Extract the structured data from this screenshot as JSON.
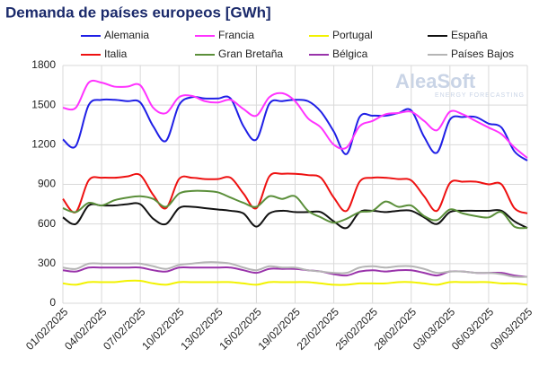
{
  "chart_data": {
    "type": "line",
    "title": "Demanda de países europeos [GWh]",
    "watermark": {
      "name": "AleaSoft",
      "tagline": "ENERGY FORECASTING"
    },
    "categories": [
      "01/02/2025",
      null,
      null,
      "04/02/2025",
      null,
      null,
      "07/02/2025",
      null,
      null,
      "10/02/2025",
      null,
      null,
      "13/02/2025",
      null,
      null,
      "16/02/2025",
      null,
      null,
      "19/02/2025",
      null,
      null,
      "22/02/2025",
      null,
      null,
      "25/02/2025",
      null,
      null,
      "28/02/2025",
      null,
      null,
      "03/03/2025",
      null,
      null,
      "06/03/2025",
      null,
      null,
      "09/03/2025"
    ],
    "ylim": [
      0,
      1800
    ],
    "yticks": [
      0,
      300,
      600,
      900,
      1200,
      1500,
      1800
    ],
    "grid": true,
    "series": [
      {
        "name": "Alemania",
        "color": "#1f1fe6",
        "values": [
          1240,
          1190,
          1500,
          1540,
          1540,
          1530,
          1520,
          1340,
          1230,
          1500,
          1560,
          1550,
          1550,
          1550,
          1340,
          1240,
          1510,
          1530,
          1540,
          1530,
          1450,
          1300,
          1130,
          1410,
          1420,
          1420,
          1440,
          1460,
          1260,
          1140,
          1390,
          1410,
          1410,
          1360,
          1330,
          1150,
          1080
        ]
      },
      {
        "name": "Francia",
        "color": "#ff33ff",
        "values": [
          1480,
          1480,
          1670,
          1670,
          1640,
          1640,
          1650,
          1480,
          1440,
          1560,
          1570,
          1530,
          1520,
          1540,
          1470,
          1420,
          1560,
          1590,
          1530,
          1400,
          1330,
          1200,
          1180,
          1340,
          1380,
          1430,
          1440,
          1450,
          1380,
          1310,
          1450,
          1430,
          1380,
          1330,
          1280,
          1180,
          1100
        ]
      },
      {
        "name": "Portugal",
        "color": "#f2f200",
        "values": [
          150,
          140,
          160,
          160,
          160,
          170,
          170,
          150,
          140,
          160,
          160,
          160,
          160,
          160,
          150,
          140,
          160,
          160,
          160,
          160,
          150,
          140,
          140,
          150,
          150,
          150,
          160,
          160,
          150,
          140,
          160,
          160,
          160,
          160,
          150,
          150,
          140
        ]
      },
      {
        "name": "España",
        "color": "#111111",
        "values": [
          650,
          600,
          740,
          740,
          740,
          750,
          750,
          640,
          600,
          720,
          730,
          720,
          710,
          700,
          680,
          580,
          680,
          700,
          690,
          690,
          690,
          620,
          570,
          690,
          700,
          690,
          700,
          700,
          650,
          600,
          690,
          700,
          700,
          700,
          700,
          620,
          570
        ]
      },
      {
        "name": "Italia",
        "color": "#ee1111",
        "values": [
          790,
          690,
          930,
          950,
          950,
          960,
          970,
          820,
          720,
          940,
          950,
          940,
          940,
          950,
          830,
          720,
          960,
          980,
          980,
          970,
          950,
          800,
          700,
          920,
          950,
          950,
          940,
          930,
          810,
          700,
          910,
          920,
          920,
          900,
          900,
          720,
          680
        ]
      },
      {
        "name": "Gran Bretaña",
        "color": "#5b8f3a",
        "values": [
          720,
          690,
          760,
          740,
          780,
          800,
          810,
          790,
          730,
          830,
          850,
          850,
          840,
          800,
          760,
          730,
          810,
          790,
          810,
          700,
          650,
          610,
          640,
          690,
          700,
          770,
          730,
          740,
          660,
          630,
          710,
          680,
          660,
          650,
          690,
          580,
          570
        ]
      },
      {
        "name": "Bélgica",
        "color": "#9933aa",
        "values": [
          250,
          240,
          270,
          270,
          270,
          270,
          270,
          250,
          240,
          270,
          270,
          270,
          270,
          270,
          250,
          230,
          260,
          260,
          260,
          250,
          240,
          220,
          210,
          240,
          250,
          240,
          250,
          250,
          230,
          210,
          240,
          240,
          230,
          230,
          230,
          210,
          200
        ]
      },
      {
        "name": "Países Bajos",
        "color": "#b5b5b5",
        "values": [
          270,
          260,
          300,
          300,
          300,
          300,
          300,
          280,
          260,
          290,
          300,
          310,
          310,
          300,
          270,
          250,
          280,
          270,
          270,
          250,
          240,
          230,
          230,
          270,
          280,
          270,
          280,
          280,
          260,
          230,
          240,
          240,
          230,
          230,
          220,
          200,
          200
        ]
      }
    ]
  }
}
